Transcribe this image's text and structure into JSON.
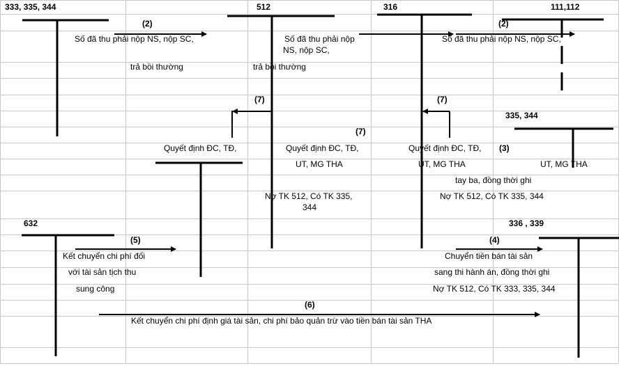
{
  "colors": {
    "grid": "#c8c8c8",
    "lines": "#000000",
    "background": "#ffffff"
  },
  "accounts": {
    "a333": "333, 335, 344",
    "a512": "512",
    "a316": "316",
    "a111": "111,112",
    "a632": "632",
    "a335b": "335, 344",
    "a336": "336 , 339"
  },
  "steps": {
    "s2": "(2)",
    "s3": "(3)",
    "s4": "(4)",
    "s5": "(5)",
    "s6": "(6)",
    "s7": "(7)"
  },
  "texts": {
    "so_da_thu_full": "Số đã thu phải nộp NS, nộp SC,",
    "so_da_thu_1": "Số đã thu phải nộp",
    "so_da_thu_2": "NS, nộp SC,",
    "tra_boi_thuong": "trả bồi thường",
    "quyet_dinh": "Quyết định ĐC, TĐ,",
    "ut_mg": "UT, MG THA",
    "no512_335_1": "Nợ TK 512, Có TK 335,",
    "no512_335_2": "344",
    "tay_ba": "tay ba, đồng thời ghi",
    "no512_335_344": "Nợ TK 512, Có TK 335, 344",
    "ket_chuyen_1": "Kết chuyển chi phí đối",
    "ket_chuyen_2": "với tài sản tịch thu",
    "ket_chuyen_3": "sung công",
    "chuyen_tien_1": "Chuyển tiền bán tài sản",
    "chuyen_tien_2": "sang thi hành án, đồng thời ghi",
    "chuyen_tien_3": "Nợ TK 512, Có TK 333, 335, 344",
    "ket_chuyen_6": "Kết chuyển chi phí định giá tài sản, chi phí bảo quản trừ vào tiền bán tài sản THA"
  }
}
